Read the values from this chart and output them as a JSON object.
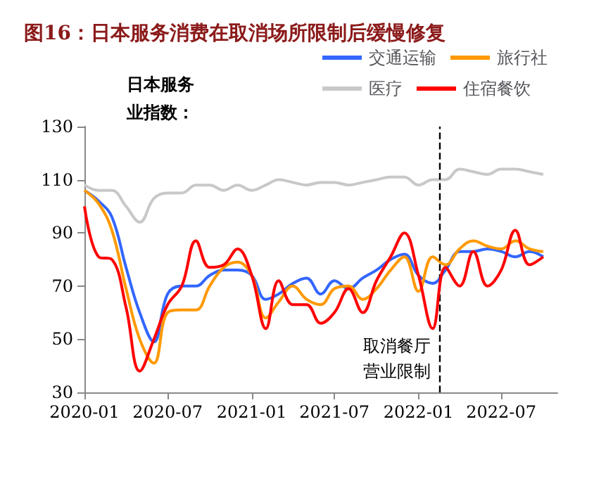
{
  "chart_data": {
    "type": "line",
    "title": "图16：日本服务消费在取消场所限制后缓慢修复",
    "ylabel": "日本服务业指数：",
    "x": [
      "2020-01",
      "2020-02",
      "2020-03",
      "2020-04",
      "2020-05",
      "2020-06",
      "2020-07",
      "2020-08",
      "2020-09",
      "2020-10",
      "2020-11",
      "2020-12",
      "2021-01",
      "2021-02",
      "2021-03",
      "2021-04",
      "2021-05",
      "2021-06",
      "2021-07",
      "2021-08",
      "2021-09",
      "2021-10",
      "2021-11",
      "2021-12",
      "2022-01",
      "2022-02",
      "2022-03",
      "2022-04",
      "2022-05",
      "2022-06",
      "2022-07",
      "2022-08",
      "2022-09",
      "2022-10"
    ],
    "xlim": [
      "2020-01",
      "2022-11"
    ],
    "xticks": [
      "2020-01",
      "2020-07",
      "2021-01",
      "2021-07",
      "2022-01",
      "2022-07"
    ],
    "ylim": [
      30,
      130
    ],
    "yticks": [
      30,
      50,
      70,
      90,
      110,
      130
    ],
    "grid": false,
    "legend": "top right",
    "marker": "none",
    "line_style": "solid",
    "series": [
      {
        "name": "交通运输",
        "color": "#3366ff",
        "values": [
          106,
          102,
          96,
          77,
          60,
          49,
          67,
          70,
          70,
          74,
          76,
          76,
          74,
          65,
          67,
          71,
          73,
          67,
          72,
          69,
          73,
          76,
          80,
          82,
          74,
          71,
          76,
          83,
          83,
          84,
          83,
          81,
          83,
          81
        ]
      },
      {
        "name": "旅行社",
        "color": "#ff9900",
        "values": [
          106,
          101,
          91,
          69,
          50,
          41,
          60,
          61,
          61,
          70,
          77,
          79,
          74,
          58,
          64,
          70,
          65,
          63,
          69,
          70,
          65,
          69,
          76,
          81,
          68,
          81,
          78,
          84,
          87,
          85,
          84,
          87,
          84,
          83
        ]
      },
      {
        "name": "医疗",
        "color": "#c8c8c8",
        "values": [
          108,
          106,
          106,
          100,
          94,
          103,
          105,
          105,
          108,
          108,
          106,
          108,
          106,
          108,
          110,
          109,
          108,
          109,
          109,
          108,
          109,
          110,
          111,
          111,
          108,
          110,
          110,
          114,
          113,
          112,
          114,
          114,
          113,
          112
        ]
      },
      {
        "name": "住宿餐饮",
        "color": "#ff0000",
        "values": [
          100,
          81,
          80,
          62,
          38,
          50,
          63,
          70,
          87,
          77,
          78,
          84,
          74,
          54,
          72,
          63,
          63,
          56,
          60,
          69,
          60,
          72,
          81,
          90,
          74,
          54,
          77,
          70,
          83,
          70,
          76,
          91,
          78,
          81
        ]
      }
    ],
    "ref_lines": [
      {
        "axis": "x",
        "value": "2022-02-15",
        "label": "取消餐厅营业限制",
        "color": "#000000",
        "line_style": "dashed"
      }
    ]
  }
}
